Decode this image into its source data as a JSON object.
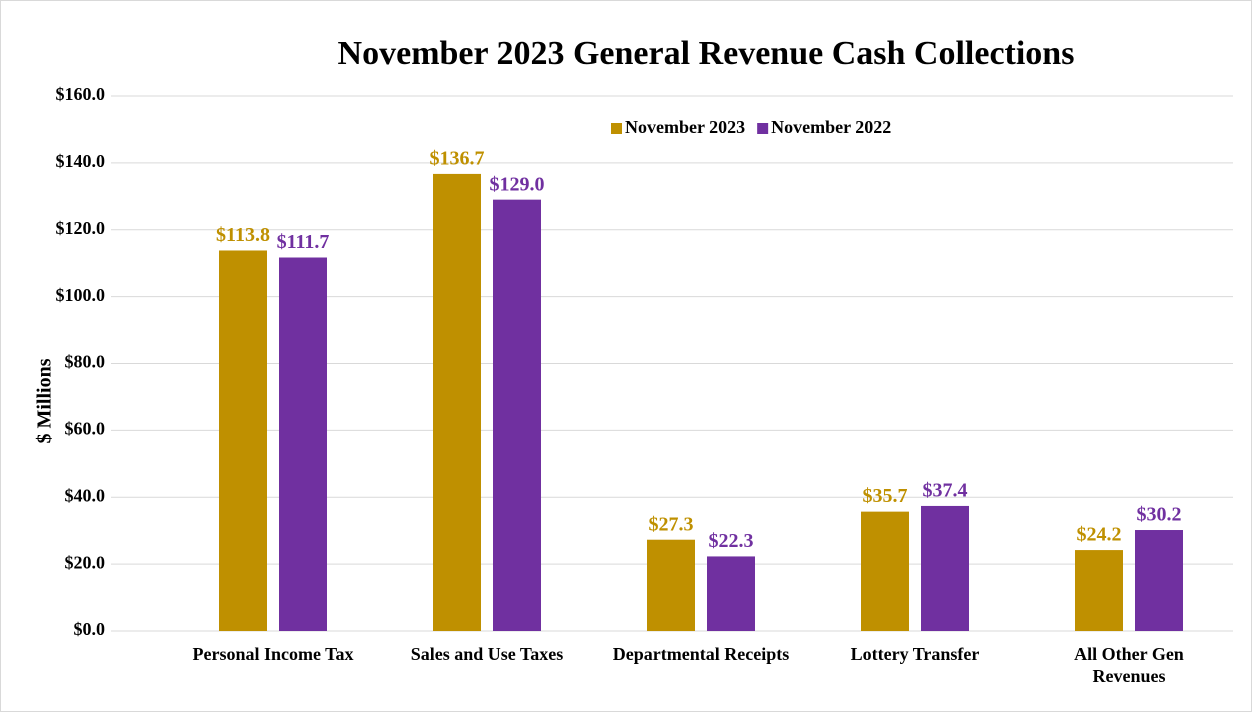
{
  "chart_data": {
    "type": "bar",
    "title": "November 2023 General Revenue Cash Collections",
    "y_label": "$ Millions",
    "categories": [
      "Personal Income Tax",
      "Sales and Use Taxes",
      "Departmental Receipts",
      "Lottery Transfer",
      "All Other Gen Revenues"
    ],
    "series": [
      {
        "name": "November 2023",
        "color": "#bf9000",
        "values": [
          113.8,
          136.7,
          27.3,
          35.7,
          24.2
        ],
        "value_labels": [
          "$113.8",
          "$136.7",
          "$27.3",
          "$35.7",
          "$24.2"
        ]
      },
      {
        "name": "November 2022",
        "color": "#7030a0",
        "values": [
          111.7,
          129.0,
          22.3,
          37.4,
          30.2
        ],
        "value_labels": [
          "$111.7",
          "$129.0",
          "$22.3",
          "$37.4",
          "$30.2"
        ]
      }
    ],
    "ylim": [
      0,
      160
    ],
    "yticks": [
      {
        "value": 0,
        "label": "$0.0"
      },
      {
        "value": 20,
        "label": "$20.0"
      },
      {
        "value": 40,
        "label": "$40.0"
      },
      {
        "value": 60,
        "label": "$60.0"
      },
      {
        "value": 80,
        "label": "$80.0"
      },
      {
        "value": 100,
        "label": "$100.0"
      },
      {
        "value": 120,
        "label": "$120.0"
      },
      {
        "value": 140,
        "label": "$140.0"
      },
      {
        "value": 160,
        "label": "$160.0"
      }
    ],
    "grid": true,
    "legend": "top"
  }
}
